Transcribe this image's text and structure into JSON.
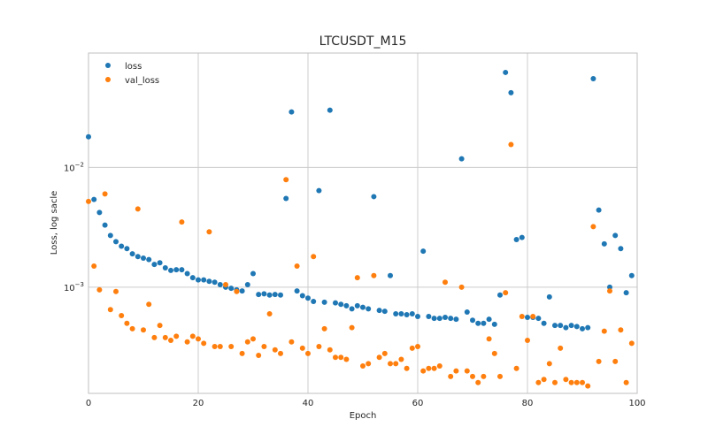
{
  "chart_data": {
    "type": "scatter",
    "title": "LTCUSDT_M15",
    "xlabel": "Epoch",
    "ylabel": "Loss, log sacle",
    "xlim": [
      0,
      100
    ],
    "ylim": [
      0.00013,
      0.09
    ],
    "y_scale": "log",
    "grid": true,
    "legend_position": "top-left",
    "x_ticks": [
      0,
      20,
      40,
      60,
      80,
      100
    ],
    "y_ticks": [
      {
        "value": 0.01,
        "base": "10",
        "exp": "−2"
      },
      {
        "value": 0.001,
        "base": "10",
        "exp": "−3"
      }
    ],
    "series": [
      {
        "name": "loss",
        "color": "#1f77b4",
        "x": [
          0,
          1,
          2,
          3,
          4,
          5,
          6,
          7,
          8,
          9,
          10,
          11,
          12,
          13,
          14,
          15,
          16,
          17,
          18,
          19,
          20,
          21,
          22,
          23,
          24,
          25,
          26,
          27,
          28,
          29,
          30,
          31,
          32,
          33,
          34,
          35,
          36,
          37,
          38,
          39,
          40,
          41,
          42,
          43,
          44,
          45,
          46,
          47,
          48,
          49,
          50,
          51,
          52,
          53,
          54,
          55,
          56,
          57,
          58,
          59,
          60,
          61,
          62,
          63,
          64,
          65,
          66,
          67,
          68,
          69,
          70,
          71,
          72,
          73,
          74,
          75,
          76,
          77,
          78,
          79,
          80,
          81,
          82,
          83,
          84,
          85,
          86,
          87,
          88,
          89,
          90,
          91,
          92,
          93,
          94,
          95,
          96,
          97,
          98,
          99
        ],
        "y": [
          0.018,
          0.0054,
          0.0042,
          0.0033,
          0.0027,
          0.0024,
          0.0022,
          0.0021,
          0.0019,
          0.0018,
          0.00175,
          0.0017,
          0.00155,
          0.0016,
          0.00145,
          0.00138,
          0.0014,
          0.0014,
          0.0013,
          0.0012,
          0.00115,
          0.00115,
          0.00112,
          0.0011,
          0.00105,
          0.001,
          0.00098,
          0.00095,
          0.00093,
          0.00105,
          0.0013,
          0.00087,
          0.00088,
          0.00086,
          0.00087,
          0.00086,
          0.0055,
          0.029,
          0.00093,
          0.00085,
          0.00081,
          0.00076,
          0.0064,
          0.00075,
          0.03,
          0.00074,
          0.00072,
          0.0007,
          0.00066,
          0.0007,
          0.00068,
          0.00066,
          0.0057,
          0.00064,
          0.00063,
          0.00125,
          0.0006,
          0.0006,
          0.00059,
          0.0006,
          0.00057,
          0.002,
          0.00057,
          0.00055,
          0.00055,
          0.00056,
          0.00055,
          0.00054,
          0.0118,
          0.00062,
          0.00053,
          0.0005,
          0.0005,
          0.00054,
          0.00049,
          0.00086,
          0.062,
          0.042,
          0.0025,
          0.0026,
          0.00056,
          0.00056,
          0.00055,
          0.0005,
          0.00083,
          0.00048,
          0.00048,
          0.00046,
          0.00048,
          0.00047,
          0.00045,
          0.00046,
          0.055,
          0.0044,
          0.0023,
          0.001,
          0.0027,
          0.0021,
          0.0009,
          0.00125
        ]
      },
      {
        "name": "val_loss",
        "color": "#ff7f0e",
        "x": [
          0,
          1,
          2,
          3,
          4,
          5,
          6,
          7,
          8,
          9,
          10,
          11,
          12,
          13,
          14,
          15,
          16,
          17,
          18,
          19,
          20,
          21,
          22,
          23,
          24,
          25,
          26,
          27,
          28,
          29,
          30,
          31,
          32,
          33,
          34,
          35,
          36,
          37,
          38,
          39,
          40,
          41,
          42,
          43,
          44,
          45,
          46,
          47,
          48,
          49,
          50,
          51,
          52,
          53,
          54,
          55,
          56,
          57,
          58,
          59,
          60,
          61,
          62,
          63,
          64,
          65,
          66,
          67,
          68,
          69,
          70,
          71,
          72,
          73,
          74,
          75,
          76,
          77,
          78,
          79,
          80,
          81,
          82,
          83,
          84,
          85,
          86,
          87,
          88,
          89,
          90,
          91,
          92,
          93,
          94,
          95,
          96,
          97,
          98,
          99
        ],
        "y": [
          0.0052,
          0.0015,
          0.00095,
          0.006,
          0.00065,
          0.00092,
          0.00058,
          0.0005,
          0.00045,
          0.0045,
          0.00044,
          0.00072,
          0.00038,
          0.00048,
          0.00038,
          0.00036,
          0.00039,
          0.0035,
          0.00035,
          0.00039,
          0.00037,
          0.00034,
          0.0029,
          0.00032,
          0.00032,
          0.00105,
          0.00032,
          0.00092,
          0.00028,
          0.00035,
          0.00037,
          0.00027,
          0.00032,
          0.0006,
          0.0003,
          0.00028,
          0.0079,
          0.00035,
          0.0015,
          0.00031,
          0.00028,
          0.0018,
          0.00032,
          0.00045,
          0.0003,
          0.00026,
          0.00026,
          0.00025,
          0.00046,
          0.0012,
          0.00022,
          0.00023,
          0.00125,
          0.00026,
          0.00028,
          0.00023,
          0.00023,
          0.00025,
          0.00021,
          0.00031,
          0.00032,
          0.0002,
          0.00021,
          0.00021,
          0.00022,
          0.0011,
          0.00018,
          0.0002,
          0.001,
          0.0002,
          0.00018,
          0.00016,
          0.00018,
          0.00037,
          0.00028,
          0.00018,
          0.0009,
          0.0155,
          0.00021,
          0.00057,
          0.00036,
          0.00057,
          0.00016,
          0.00017,
          0.00023,
          0.00016,
          0.00031,
          0.00017,
          0.00016,
          0.00016,
          0.00016,
          0.00015,
          0.0032,
          0.00024,
          0.00043,
          0.00093,
          0.00024,
          0.00044,
          0.00016,
          0.00034
        ]
      }
    ]
  }
}
